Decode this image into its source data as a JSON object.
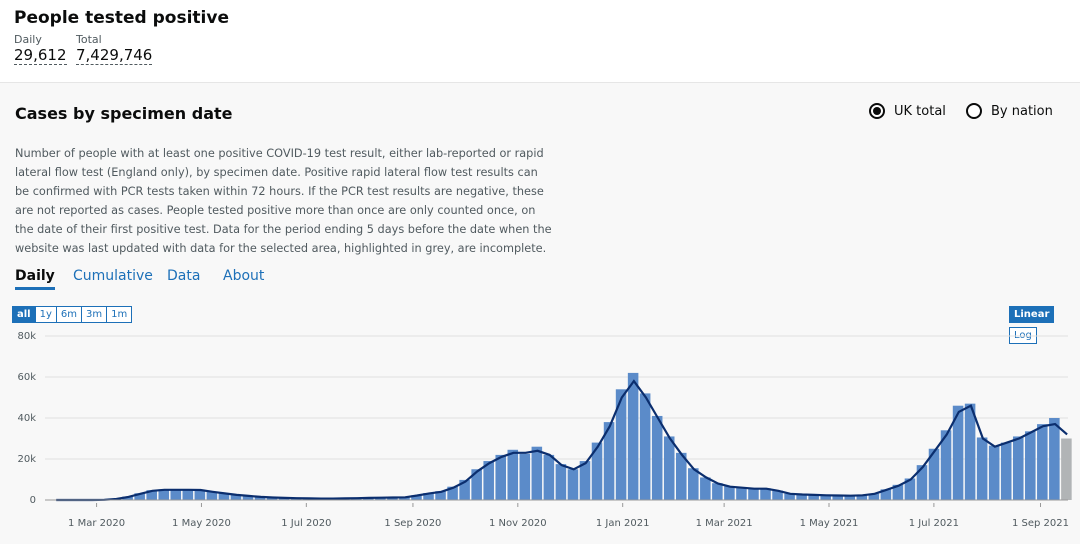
{
  "header": {
    "title": "People tested positive",
    "daily_label": "Daily",
    "daily_value": "29,612",
    "total_label": "Total",
    "total_value": "7,429,746"
  },
  "card": {
    "title": "Cases by specimen date",
    "options": [
      "UK total",
      "By nation"
    ],
    "selected_option": 0,
    "description": "Number of people with at least one positive COVID-19 test result, either lab-reported or rapid lateral flow test (England only), by specimen date. Positive rapid lateral flow test results can be confirmed with PCR tests taken within 72 hours. If the PCR test results are negative, these are not reported as cases. People tested positive more than once are only counted once, on the date of their first positive test. Data for the period ending 5 days before the date when the website was last updated with data for the selected area, highlighted in grey, are incomplete.",
    "tabs": [
      "Daily",
      "Cumulative",
      "Data",
      "About"
    ],
    "active_tab": 0,
    "ranges": [
      "all",
      "1y",
      "6m",
      "3m",
      "1m"
    ],
    "active_range": 0,
    "scales": [
      "Linear",
      "Log"
    ],
    "active_scale": 0
  },
  "chart_data": {
    "type": "bar",
    "x": [
      "2020-02-03",
      "2020-02-10",
      "2020-02-17",
      "2020-02-24",
      "2020-03-02",
      "2020-03-09",
      "2020-03-16",
      "2020-03-23",
      "2020-03-30",
      "2020-04-06",
      "2020-04-13",
      "2020-04-20",
      "2020-04-27",
      "2020-05-04",
      "2020-05-11",
      "2020-05-18",
      "2020-05-25",
      "2020-06-01",
      "2020-06-08",
      "2020-06-15",
      "2020-06-22",
      "2020-06-29",
      "2020-07-06",
      "2020-07-13",
      "2020-07-20",
      "2020-07-27",
      "2020-08-03",
      "2020-08-10",
      "2020-08-17",
      "2020-08-24",
      "2020-08-31",
      "2020-09-07",
      "2020-09-14",
      "2020-09-21",
      "2020-09-28",
      "2020-10-05",
      "2020-10-12",
      "2020-10-19",
      "2020-10-26",
      "2020-11-02",
      "2020-11-09",
      "2020-11-16",
      "2020-11-23",
      "2020-11-30",
      "2020-12-07",
      "2020-12-14",
      "2020-12-21",
      "2020-12-28",
      "2021-01-04",
      "2021-01-11",
      "2021-01-18",
      "2021-01-25",
      "2021-02-01",
      "2021-02-08",
      "2021-02-15",
      "2021-02-22",
      "2021-03-01",
      "2021-03-08",
      "2021-03-15",
      "2021-03-22",
      "2021-03-29",
      "2021-04-05",
      "2021-04-12",
      "2021-04-19",
      "2021-04-26",
      "2021-05-03",
      "2021-05-10",
      "2021-05-17",
      "2021-05-24",
      "2021-05-31",
      "2021-06-07",
      "2021-06-14",
      "2021-06-21",
      "2021-06-28",
      "2021-07-05",
      "2021-07-12",
      "2021-07-19",
      "2021-07-26",
      "2021-08-02",
      "2021-08-09",
      "2021-08-16",
      "2021-08-23",
      "2021-08-30",
      "2021-09-06",
      "2021-09-13"
    ],
    "series": [
      {
        "color": "#5b8bc9",
        "values": [
          0,
          0,
          0,
          50,
          100,
          600,
          1700,
          3300,
          4800,
          5200,
          4900,
          5300,
          4800,
          4100,
          3300,
          2600,
          2000,
          1600,
          1300,
          1000,
          900,
          800,
          700,
          750,
          800,
          900,
          1000,
          1100,
          1250,
          1300,
          2300,
          3400,
          4300,
          6500,
          9800,
          15000,
          19000,
          22000,
          24500,
          22500,
          26000,
          22000,
          17500,
          15000,
          19000,
          28000,
          38000,
          54000,
          62000,
          52000,
          41000,
          31000,
          23000,
          15500,
          11000,
          8200,
          6700,
          6200,
          5600,
          5700,
          4600,
          3100,
          2800,
          2600,
          2400,
          2200,
          2200,
          2400,
          3100,
          5200,
          7400,
          10500,
          17000,
          25000,
          34000,
          46000,
          47000,
          30500,
          26500,
          28000,
          31000,
          33500,
          37000,
          40000,
          30000
        ]
      },
      {
        "color": "#0b2e6e",
        "values": [
          0,
          0,
          0,
          0,
          100,
          500,
          1500,
          3000,
          4500,
          5000,
          5000,
          5000,
          4900,
          4000,
          3200,
          2500,
          2000,
          1500,
          1200,
          1000,
          900,
          800,
          700,
          700,
          800,
          900,
          1000,
          1100,
          1200,
          1300,
          2200,
          3200,
          4000,
          6000,
          9000,
          14000,
          18000,
          21000,
          23000,
          23000,
          24000,
          22000,
          17000,
          15000,
          18000,
          26000,
          36000,
          50000,
          58000,
          50000,
          40000,
          30000,
          22000,
          15000,
          11000,
          8000,
          6500,
          6000,
          5500,
          5500,
          4500,
          3000,
          2700,
          2500,
          2300,
          2200,
          2100,
          2300,
          3000,
          5000,
          7000,
          10000,
          16000,
          24000,
          32000,
          43000,
          46000,
          30000,
          26000,
          28000,
          30000,
          33000,
          36000,
          37000,
          32000
        ]
      }
    ],
    "incomplete_from": "2021-09-13",
    "incomplete_color": "#b1b4b6",
    "ylim": [
      0,
      80000
    ],
    "yticks": [
      0,
      {
        "value": 20000,
        "label": "20k"
      },
      {
        "value": 40000,
        "label": "40k"
      },
      {
        "value": 60000,
        "label": "60k"
      },
      {
        "value": 80000,
        "label": "80k"
      }
    ],
    "xlim": [
      "2020-01-31",
      "2021-09-17"
    ],
    "xticks": [
      {
        "value": "2020-03-01",
        "label": "1 Mar 2020"
      },
      {
        "value": "2020-05-01",
        "label": "1 May 2020"
      },
      {
        "value": "2020-07-01",
        "label": "1 Jul 2020"
      },
      {
        "value": "2020-09-01",
        "label": "1 Sep 2020"
      },
      {
        "value": "2020-11-01",
        "label": "1 Nov 2020"
      },
      {
        "value": "2021-01-01",
        "label": "1 Jan 2021"
      },
      {
        "value": "2021-03-01",
        "label": "1 Mar 2021"
      },
      {
        "value": "2021-05-01",
        "label": "1 May 2021"
      },
      {
        "value": "2021-07-01",
        "label": "1 Jul 2021"
      },
      {
        "value": "2021-09-01",
        "label": "1 Sep 2021"
      }
    ],
    "grid": true
  }
}
